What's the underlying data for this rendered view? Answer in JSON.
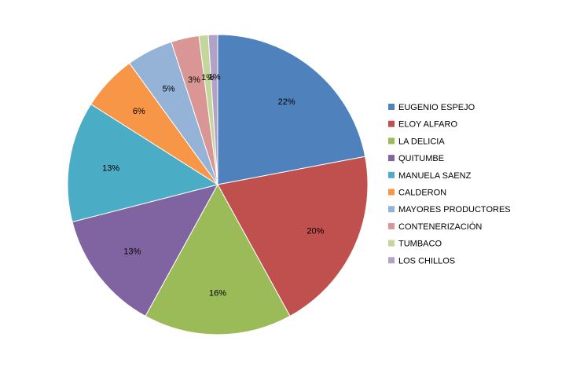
{
  "chart_data": {
    "type": "pie",
    "categories": [
      "EUGENIO ESPEJO",
      "ELOY ALFARO",
      "LA DELICIA",
      "QUITUMBE",
      "MANUELA SAENZ",
      "CALDERON",
      "MAYORES PRODUCTORES",
      "CONTENERIZACIÓN",
      "TUMBACO",
      "LOS CHILLOS"
    ],
    "values": [
      22,
      20,
      16,
      13,
      13,
      6,
      5,
      3,
      1,
      1
    ],
    "labels": [
      "22%",
      "20%",
      "16%",
      "13%",
      "13%",
      "6%",
      "5%",
      "3%",
      "1%",
      "1%"
    ],
    "colors": [
      "#4F81BD",
      "#C0504D",
      "#9BBB59",
      "#8064A2",
      "#4BACC6",
      "#F79646",
      "#95B3D7",
      "#D99694",
      "#C3D69B",
      "#B3A2C7"
    ],
    "legend_position": "right",
    "start_angle": "top, clockwise"
  }
}
